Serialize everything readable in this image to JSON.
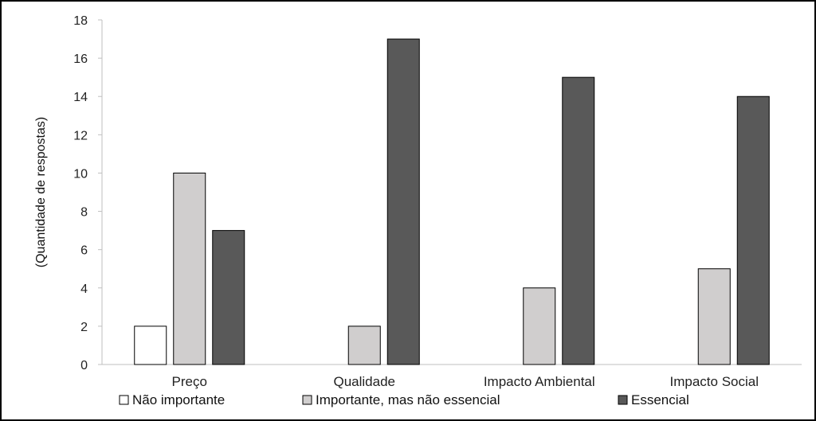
{
  "chart_data": {
    "type": "bar",
    "title": "",
    "xlabel": "",
    "ylabel": "(Quantidade de respostas)",
    "ylim": [
      0,
      18
    ],
    "yticks": [
      0,
      2,
      4,
      6,
      8,
      10,
      12,
      14,
      16,
      18
    ],
    "grid": false,
    "legend_position": "bottom",
    "categories": [
      "Preço",
      "Qualidade",
      "Impacto Ambiental",
      "Impacto Social"
    ],
    "series": [
      {
        "name": "Não importante",
        "values": [
          2,
          0,
          0,
          0
        ],
        "color": "#ffffff"
      },
      {
        "name": "Importante, mas não essencial",
        "values": [
          10,
          2,
          4,
          5
        ],
        "color": "#d0cece"
      },
      {
        "name": "Essencial",
        "values": [
          7,
          17,
          15,
          14
        ],
        "color": "#595959"
      }
    ]
  }
}
